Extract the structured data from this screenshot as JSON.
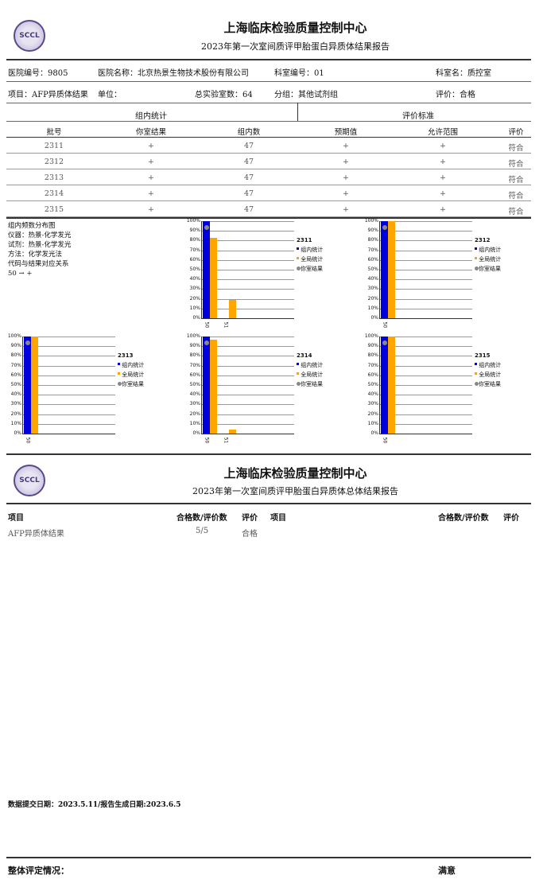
{
  "header": {
    "logo_text": "SCCL",
    "org": "上海临床检验质量控制中心",
    "report_title": "2023年第一次室间质评甲胎蛋白异质体结果报告"
  },
  "info": {
    "hospital_no": "医院编号：9805",
    "hospital_name": "医院名称：北京热景生物技术股份有限公司",
    "dept_no": "科室编号：01",
    "dept_name": "科室名：质控室",
    "project": "项目：AFP异质体结果",
    "unit": "单位：",
    "total_labs": "总实验室数：64",
    "group": "分组：其他试剂组",
    "evaluation": "评价：合格"
  },
  "table": {
    "group_left": "组内统计",
    "group_right": "评价标准",
    "headers": [
      "批号",
      "你室结果",
      "组内数",
      "预期值",
      "允许范围",
      "评价"
    ],
    "rows": [
      [
        "2311",
        "+",
        "47",
        "+",
        "+",
        "符合"
      ],
      [
        "2312",
        "+",
        "47",
        "+",
        "+",
        "符合"
      ],
      [
        "2313",
        "+",
        "47",
        "+",
        "+",
        "符合"
      ],
      [
        "2314",
        "+",
        "47",
        "+",
        "+",
        "符合"
      ],
      [
        "2315",
        "+",
        "47",
        "+",
        "+",
        "符合"
      ]
    ]
  },
  "notes": [
    "组内频数分布图",
    "仪器：热景-化学发光",
    "试剂：热景-化学发光",
    "方法：化学发光法",
    "代码与结果对应关系",
    "50 → +"
  ],
  "legend": [
    "组内统计",
    "全局统计",
    "你室结果"
  ],
  "colors": {
    "group": "#0000dd",
    "global": "#ffa500",
    "yours": "#888888"
  },
  "chart_data": [
    {
      "type": "bar",
      "title": "2311",
      "categories": [
        "50",
        "51"
      ],
      "series": [
        {
          "name": "组内统计",
          "values": [
            100,
            0
          ]
        },
        {
          "name": "全局统计",
          "values": [
            83,
            19
          ]
        }
      ],
      "your_result": "50",
      "ylim": [
        0,
        100
      ],
      "yticks": [
        "0%",
        "10%",
        "20%",
        "30%",
        "40%",
        "50%",
        "60%",
        "70%",
        "80%",
        "90%",
        "100%"
      ]
    },
    {
      "type": "bar",
      "title": "2312",
      "categories": [
        "50"
      ],
      "series": [
        {
          "name": "组内统计",
          "values": [
            100
          ]
        },
        {
          "name": "全局统计",
          "values": [
            100
          ]
        }
      ],
      "your_result": "50",
      "ylim": [
        0,
        100
      ],
      "yticks": [
        "0%",
        "10%",
        "20%",
        "30%",
        "40%",
        "50%",
        "60%",
        "70%",
        "80%",
        "90%",
        "100%"
      ]
    },
    {
      "type": "bar",
      "title": "2313",
      "categories": [
        "50"
      ],
      "series": [
        {
          "name": "组内统计",
          "values": [
            100
          ]
        },
        {
          "name": "全局统计",
          "values": [
            100
          ]
        }
      ],
      "your_result": "50",
      "ylim": [
        0,
        100
      ],
      "yticks": [
        "0%",
        "10%",
        "20%",
        "30%",
        "40%",
        "50%",
        "60%",
        "70%",
        "80%",
        "90%",
        "100%"
      ]
    },
    {
      "type": "bar",
      "title": "2314",
      "categories": [
        "50",
        "51"
      ],
      "series": [
        {
          "name": "组内统计",
          "values": [
            100,
            0
          ]
        },
        {
          "name": "全局统计",
          "values": [
            97,
            4
          ]
        }
      ],
      "your_result": "50",
      "ylim": [
        0,
        100
      ],
      "yticks": [
        "0%",
        "10%",
        "20%",
        "30%",
        "40%",
        "50%",
        "60%",
        "70%",
        "80%",
        "90%",
        "100%"
      ]
    },
    {
      "type": "bar",
      "title": "2315",
      "categories": [
        "50"
      ],
      "series": [
        {
          "name": "组内统计",
          "values": [
            100
          ]
        },
        {
          "name": "全局统计",
          "values": [
            100
          ]
        }
      ],
      "your_result": "50",
      "ylim": [
        0,
        100
      ],
      "yticks": [
        "0%",
        "10%",
        "20%",
        "30%",
        "40%",
        "50%",
        "60%",
        "70%",
        "80%",
        "90%",
        "100%"
      ]
    }
  ],
  "summary": {
    "logo_text": "SCCL",
    "org": "上海临床检验质量控制中心",
    "title": "2023年第一次室间质评甲胎蛋白异质体总体结果报告",
    "headers": [
      "项目",
      "合格数/评价数",
      "评价",
      "项目",
      "合格数/评价数",
      "评价"
    ],
    "rows": [
      [
        "AFP异质体结果",
        "5/5",
        "合格"
      ]
    ]
  },
  "footer": {
    "dates": "数据提交日期：2023.5.11/报告生成日期:2023.6.5",
    "overall_label": "整体评定情况：",
    "overall_value": "满意"
  }
}
